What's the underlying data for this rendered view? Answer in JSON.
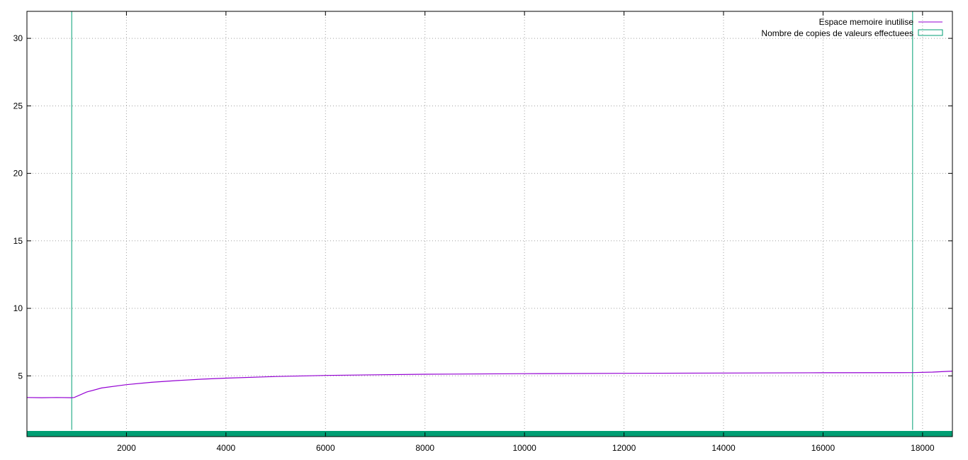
{
  "chart_data": {
    "type": "line",
    "title": "",
    "xlabel": "",
    "ylabel": "",
    "xlim": [
      0,
      18600
    ],
    "ylim": [
      0.5,
      32
    ],
    "xticks": [
      2000,
      4000,
      6000,
      8000,
      10000,
      12000,
      14000,
      16000,
      18000
    ],
    "yticks": [
      5,
      10,
      15,
      20,
      25,
      30
    ],
    "grid": true,
    "legend_position": "top-right",
    "series": [
      {
        "name": "Espace memoire inutilise",
        "style": "line",
        "color": "#9400d3",
        "x": [
          0,
          300,
          600,
          900,
          950,
          1200,
          1500,
          2000,
          2500,
          3000,
          3500,
          4000,
          5000,
          6000,
          7000,
          8000,
          10000,
          12000,
          14000,
          16000,
          17800,
          18200,
          18600
        ],
        "y": [
          3.4,
          3.38,
          3.4,
          3.38,
          3.4,
          3.8,
          4.1,
          4.35,
          4.52,
          4.65,
          4.75,
          4.83,
          4.95,
          5.03,
          5.08,
          5.12,
          5.16,
          5.19,
          5.21,
          5.23,
          5.24,
          5.28,
          5.35
        ]
      },
      {
        "name": "Nombre de copies de valeurs effectuees",
        "style": "impulses",
        "color": "#009e73",
        "x": [
          900,
          17800
        ],
        "y": [
          32,
          32
        ],
        "baseline": 1
      }
    ]
  }
}
